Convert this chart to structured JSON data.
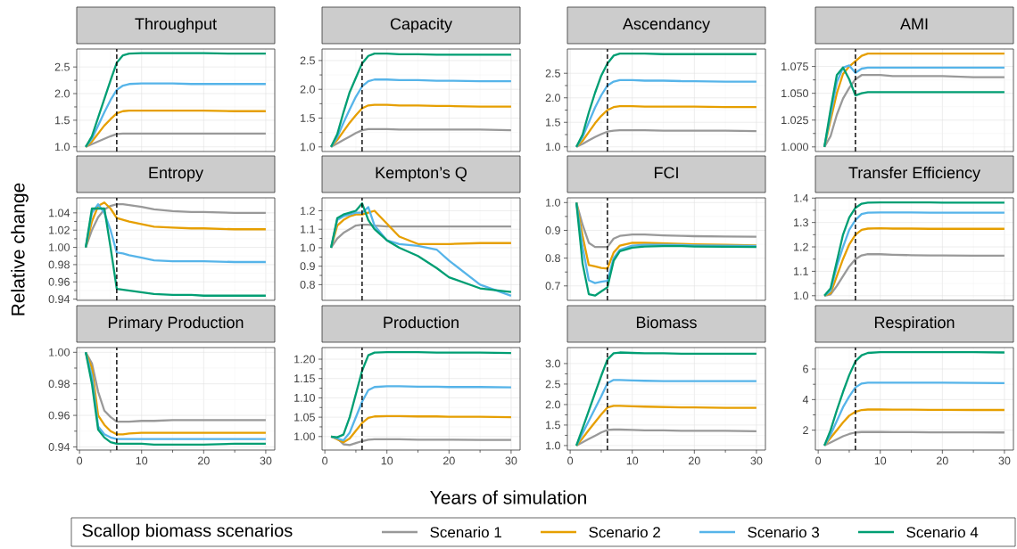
{
  "chart_data": [
    {
      "type": "line",
      "title": "Throughput",
      "legend": "bottom",
      "legend_title": "Scallop biomass scenarios",
      "grid": true,
      "tick_labels": "y",
      "x": [
        1,
        2,
        3,
        4,
        5,
        6,
        7,
        8,
        10,
        12,
        15,
        18,
        20,
        25,
        30
      ],
      "xlim": [
        -0.45,
        31.45
      ],
      "xticks": [
        0,
        10,
        20,
        30
      ],
      "ylim": [
        0.9125,
        2.8375
      ],
      "yticks": [
        {
          "value": 1,
          "label": "1.0"
        },
        {
          "value": 1.5,
          "label": "1.5"
        },
        {
          "value": 2,
          "label": "2.0"
        },
        {
          "value": 2.5,
          "label": "2.5"
        }
      ],
      "ref_lines": [
        {
          "axis": "x",
          "value": 6,
          "color": "#000000",
          "line_style": "dashed"
        }
      ],
      "series": [
        {
          "name": "Scenario 1",
          "color": "#999999",
          "values": [
            1.0,
            1.05,
            1.1,
            1.15,
            1.2,
            1.24,
            1.25,
            1.25,
            1.25,
            1.25,
            1.25,
            1.25,
            1.25,
            1.25,
            1.25
          ]
        },
        {
          "name": "Scenario 2",
          "color": "#E69F00",
          "values": [
            1.0,
            1.1,
            1.25,
            1.4,
            1.52,
            1.63,
            1.67,
            1.68,
            1.68,
            1.68,
            1.68,
            1.68,
            1.68,
            1.67,
            1.67
          ]
        },
        {
          "name": "Scenario 3",
          "color": "#56B4E9",
          "values": [
            1.0,
            1.15,
            1.4,
            1.65,
            1.88,
            2.07,
            2.15,
            2.18,
            2.19,
            2.19,
            2.19,
            2.18,
            2.18,
            2.18,
            2.18
          ]
        },
        {
          "name": "Scenario 4",
          "color": "#009E73",
          "values": [
            1.0,
            1.2,
            1.55,
            1.9,
            2.25,
            2.58,
            2.72,
            2.75,
            2.76,
            2.76,
            2.76,
            2.76,
            2.76,
            2.75,
            2.75
          ]
        }
      ]
    },
    {
      "type": "line",
      "title": "Capacity",
      "grid": true,
      "tick_labels": "y",
      "x": [
        1,
        2,
        3,
        4,
        5,
        6,
        7,
        8,
        10,
        12,
        15,
        18,
        20,
        25,
        30
      ],
      "xlim": [
        -0.45,
        31.45
      ],
      "xticks": [
        0,
        10,
        20,
        30
      ],
      "ylim": [
        0.92,
        2.7
      ],
      "yticks": [
        {
          "value": 1,
          "label": "1.0"
        },
        {
          "value": 1.5,
          "label": "1.5"
        },
        {
          "value": 2,
          "label": "2.0"
        },
        {
          "value": 2.5,
          "label": "2.5"
        }
      ],
      "ref_lines": [
        {
          "axis": "x",
          "value": 6,
          "color": "#000000",
          "line_style": "dashed"
        }
      ],
      "series": [
        {
          "color": "#999999",
          "values": [
            1,
            1.06,
            1.12,
            1.18,
            1.24,
            1.29,
            1.31,
            1.31,
            1.31,
            1.3,
            1.3,
            1.3,
            1.3,
            1.3,
            1.29
          ]
        },
        {
          "color": "#E69F00",
          "values": [
            1,
            1.12,
            1.27,
            1.42,
            1.55,
            1.67,
            1.72,
            1.73,
            1.73,
            1.72,
            1.72,
            1.71,
            1.71,
            1.7,
            1.7
          ]
        },
        {
          "color": "#56B4E9",
          "values": [
            1,
            1.17,
            1.42,
            1.65,
            1.87,
            2.05,
            2.14,
            2.17,
            2.17,
            2.16,
            2.16,
            2.15,
            2.15,
            2.14,
            2.14
          ]
        },
        {
          "color": "#009E73",
          "values": [
            1,
            1.22,
            1.6,
            1.95,
            2.2,
            2.45,
            2.58,
            2.62,
            2.62,
            2.61,
            2.61,
            2.6,
            2.6,
            2.6,
            2.6
          ]
        }
      ]
    },
    {
      "type": "line",
      "title": "Ascendancy",
      "grid": true,
      "tick_labels": "y",
      "x": [
        1,
        2,
        3,
        4,
        5,
        6,
        7,
        8,
        10,
        12,
        15,
        18,
        20,
        25,
        30
      ],
      "xlim": [
        -0.45,
        31.45
      ],
      "xticks": [
        0,
        10,
        20,
        30
      ],
      "ylim": [
        0.905,
        2.995
      ],
      "yticks": [
        {
          "value": 1,
          "label": "1.0"
        },
        {
          "value": 1.5,
          "label": "1.5"
        },
        {
          "value": 2,
          "label": "2.0"
        },
        {
          "value": 2.5,
          "label": "2.5"
        }
      ],
      "ref_lines": [
        {
          "axis": "x",
          "value": 6,
          "color": "#000000",
          "line_style": "dashed"
        }
      ],
      "series": [
        {
          "color": "#999999",
          "values": [
            1,
            1.06,
            1.13,
            1.2,
            1.26,
            1.31,
            1.33,
            1.34,
            1.34,
            1.34,
            1.33,
            1.33,
            1.33,
            1.33,
            1.32
          ]
        },
        {
          "color": "#E69F00",
          "values": [
            1,
            1.12,
            1.3,
            1.48,
            1.63,
            1.75,
            1.81,
            1.83,
            1.83,
            1.82,
            1.82,
            1.82,
            1.82,
            1.81,
            1.81
          ]
        },
        {
          "color": "#56B4E9",
          "values": [
            1,
            1.2,
            1.5,
            1.8,
            2.05,
            2.25,
            2.33,
            2.36,
            2.36,
            2.35,
            2.35,
            2.34,
            2.34,
            2.33,
            2.33
          ]
        },
        {
          "color": "#009E73",
          "values": [
            1,
            1.25,
            1.7,
            2.1,
            2.45,
            2.7,
            2.86,
            2.9,
            2.9,
            2.9,
            2.89,
            2.89,
            2.89,
            2.89,
            2.89
          ]
        }
      ]
    },
    {
      "type": "line",
      "title": "AMI",
      "grid": true,
      "tick_labels": "y",
      "x": [
        1,
        2,
        3,
        4,
        5,
        6,
        7,
        8,
        10,
        12,
        15,
        18,
        20,
        25,
        30
      ],
      "xlim": [
        -0.45,
        31.45
      ],
      "xticks": [
        0,
        10,
        20,
        30
      ],
      "ylim": [
        0.9957,
        1.0913
      ],
      "yticks": [
        {
          "value": 1,
          "label": "1.000"
        },
        {
          "value": 1.025,
          "label": "1.025"
        },
        {
          "value": 1.05,
          "label": "1.050"
        },
        {
          "value": 1.075,
          "label": "1.075"
        }
      ],
      "ref_lines": [
        {
          "axis": "x",
          "value": 6,
          "color": "#000000",
          "line_style": "dashed"
        }
      ],
      "series": [
        {
          "color": "#999999",
          "values": [
            1,
            1.01,
            1.03,
            1.045,
            1.055,
            1.063,
            1.067,
            1.067,
            1.067,
            1.066,
            1.066,
            1.066,
            1.066,
            1.065,
            1.065
          ]
        },
        {
          "color": "#E69F00",
          "values": [
            1,
            1.025,
            1.05,
            1.068,
            1.075,
            1.08,
            1.085,
            1.087,
            1.087,
            1.087,
            1.087,
            1.087,
            1.087,
            1.087,
            1.087
          ]
        },
        {
          "color": "#56B4E9",
          "values": [
            1,
            1.03,
            1.06,
            1.074,
            1.076,
            1.069,
            1.073,
            1.074,
            1.074,
            1.074,
            1.074,
            1.074,
            1.074,
            1.074,
            1.074
          ]
        },
        {
          "color": "#009E73",
          "values": [
            1,
            1.035,
            1.067,
            1.074,
            1.063,
            1.048,
            1.05,
            1.051,
            1.051,
            1.051,
            1.051,
            1.051,
            1.051,
            1.051,
            1.051
          ]
        }
      ]
    },
    {
      "type": "line",
      "title": "Entropy",
      "ylabel": "Relative change",
      "grid": true,
      "tick_labels": "y",
      "x": [
        1,
        2,
        3,
        4,
        5,
        6,
        7,
        8,
        10,
        12,
        15,
        18,
        20,
        25,
        30
      ],
      "xlim": [
        -0.45,
        31.45
      ],
      "xticks": [
        0,
        10,
        20,
        30
      ],
      "ylim": [
        0.9386,
        1.0574
      ],
      "yticks": [
        {
          "value": 0.94,
          "label": "0.94"
        },
        {
          "value": 0.96,
          "label": "0.96"
        },
        {
          "value": 0.98,
          "label": "0.98"
        },
        {
          "value": 1,
          "label": "1.00"
        },
        {
          "value": 1.02,
          "label": "1.02"
        },
        {
          "value": 1.04,
          "label": "1.04"
        }
      ],
      "ref_lines": [
        {
          "axis": "x",
          "value": 6,
          "color": "#000000",
          "line_style": "dashed"
        }
      ],
      "series": [
        {
          "color": "#999999",
          "values": [
            1,
            1.02,
            1.035,
            1.044,
            1.048,
            1.05,
            1.05,
            1.049,
            1.047,
            1.044,
            1.042,
            1.041,
            1.041,
            1.04,
            1.04
          ]
        },
        {
          "color": "#E69F00",
          "values": [
            1,
            1.03,
            1.048,
            1.052,
            1.045,
            1.034,
            1.032,
            1.03,
            1.027,
            1.024,
            1.023,
            1.022,
            1.022,
            1.021,
            1.021
          ]
        },
        {
          "color": "#56B4E9",
          "values": [
            1,
            1.04,
            1.05,
            1.04,
            1.02,
            0.994,
            0.993,
            0.991,
            0.988,
            0.985,
            0.984,
            0.984,
            0.984,
            0.983,
            0.983
          ]
        },
        {
          "color": "#009E73",
          "values": [
            1,
            1.045,
            1.045,
            1.045,
            1.0,
            0.952,
            0.951,
            0.95,
            0.948,
            0.946,
            0.945,
            0.945,
            0.944,
            0.944,
            0.944
          ]
        }
      ]
    },
    {
      "type": "line",
      "title": "Kempton’s Q",
      "grid": true,
      "tick_labels": "y",
      "x": [
        1,
        2,
        3,
        4,
        5,
        6,
        7,
        8,
        10,
        12,
        15,
        18,
        20,
        25,
        30
      ],
      "xlim": [
        -0.45,
        31.45
      ],
      "xticks": [
        0,
        10,
        20,
        30
      ],
      "ylim": [
        0.715,
        1.27
      ],
      "yticks": [
        {
          "value": 0.8,
          "label": "0.8"
        },
        {
          "value": 0.9,
          "label": "0.9"
        },
        {
          "value": 1,
          "label": "1.0"
        },
        {
          "value": 1.1,
          "label": "1.1"
        },
        {
          "value": 1.2,
          "label": "1.2"
        }
      ],
      "ref_lines": [
        {
          "axis": "x",
          "value": 6,
          "color": "#000000",
          "line_style": "dashed"
        }
      ],
      "series": [
        {
          "color": "#999999",
          "values": [
            1,
            1.05,
            1.08,
            1.1,
            1.12,
            1.125,
            1.125,
            1.12,
            1.115,
            1.115,
            1.115,
            1.115,
            1.115,
            1.115,
            1.115
          ]
        },
        {
          "color": "#E69F00",
          "values": [
            1,
            1.12,
            1.15,
            1.17,
            1.18,
            1.18,
            1.19,
            1.2,
            1.13,
            1.06,
            1.02,
            1.02,
            1.02,
            1.025,
            1.025
          ]
        },
        {
          "color": "#56B4E9",
          "values": [
            1,
            1.15,
            1.17,
            1.18,
            1.19,
            1.19,
            1.22,
            1.12,
            1.04,
            1.02,
            1.01,
            0.99,
            0.93,
            0.8,
            0.74
          ]
        },
        {
          "color": "#009E73",
          "values": [
            1,
            1.16,
            1.18,
            1.19,
            1.2,
            1.24,
            1.15,
            1.1,
            1.04,
            1.0,
            0.955,
            0.89,
            0.84,
            0.78,
            0.76
          ]
        }
      ]
    },
    {
      "type": "line",
      "title": "FCI",
      "grid": true,
      "tick_labels": "y",
      "x": [
        1,
        2,
        3,
        4,
        5,
        6,
        7,
        8,
        10,
        12,
        15,
        18,
        20,
        25,
        30
      ],
      "xlim": [
        -0.45,
        31.45
      ],
      "xticks": [
        0,
        10,
        20,
        30
      ],
      "ylim": [
        0.648,
        1.017
      ],
      "yticks": [
        {
          "value": 0.7,
          "label": "0.7"
        },
        {
          "value": 0.8,
          "label": "0.8"
        },
        {
          "value": 0.9,
          "label": "0.9"
        },
        {
          "value": 1,
          "label": "1.0"
        }
      ],
      "ref_lines": [
        {
          "axis": "x",
          "value": 6,
          "color": "#000000",
          "line_style": "dashed"
        }
      ],
      "series": [
        {
          "color": "#999999",
          "values": [
            1,
            0.92,
            0.855,
            0.84,
            0.84,
            0.84,
            0.87,
            0.88,
            0.885,
            0.885,
            0.882,
            0.88,
            0.879,
            0.878,
            0.877
          ]
        },
        {
          "color": "#E69F00",
          "values": [
            1,
            0.88,
            0.775,
            0.77,
            0.765,
            0.762,
            0.82,
            0.845,
            0.855,
            0.855,
            0.853,
            0.851,
            0.85,
            0.848,
            0.846
          ]
        },
        {
          "color": "#56B4E9",
          "values": [
            1,
            0.84,
            0.72,
            0.71,
            0.715,
            0.718,
            0.8,
            0.83,
            0.845,
            0.848,
            0.848,
            0.847,
            0.846,
            0.845,
            0.844
          ]
        },
        {
          "color": "#009E73",
          "values": [
            1,
            0.78,
            0.67,
            0.665,
            0.68,
            0.695,
            0.79,
            0.825,
            0.838,
            0.842,
            0.843,
            0.843,
            0.842,
            0.841,
            0.84
          ]
        }
      ]
    },
    {
      "type": "line",
      "title": "Transfer Efficiency",
      "grid": true,
      "tick_labels": "y",
      "x": [
        1,
        2,
        3,
        4,
        5,
        6,
        7,
        8,
        10,
        12,
        15,
        18,
        20,
        25,
        30
      ],
      "xlim": [
        -0.45,
        31.45
      ],
      "xticks": [
        0,
        10,
        20,
        30
      ],
      "ylim": [
        0.981,
        1.401
      ],
      "yticks": [
        {
          "value": 1,
          "label": "1.0"
        },
        {
          "value": 1.1,
          "label": "1.1"
        },
        {
          "value": 1.2,
          "label": "1.2"
        },
        {
          "value": 1.3,
          "label": "1.3"
        },
        {
          "value": 1.4,
          "label": "1.4"
        }
      ],
      "ref_lines": [
        {
          "axis": "x",
          "value": 6,
          "color": "#000000",
          "line_style": "dashed"
        }
      ],
      "series": [
        {
          "color": "#999999",
          "values": [
            1,
            1.005,
            1.04,
            1.08,
            1.12,
            1.15,
            1.165,
            1.17,
            1.17,
            1.168,
            1.166,
            1.165,
            1.165,
            1.164,
            1.164
          ]
        },
        {
          "color": "#E69F00",
          "values": [
            1,
            1.01,
            1.08,
            1.15,
            1.21,
            1.25,
            1.27,
            1.275,
            1.276,
            1.275,
            1.275,
            1.274,
            1.274,
            1.274,
            1.274
          ]
        },
        {
          "color": "#56B4E9",
          "values": [
            1,
            1.02,
            1.12,
            1.2,
            1.27,
            1.31,
            1.335,
            1.34,
            1.341,
            1.341,
            1.341,
            1.34,
            1.34,
            1.34,
            1.34
          ]
        },
        {
          "color": "#009E73",
          "values": [
            1,
            1.03,
            1.14,
            1.25,
            1.32,
            1.36,
            1.377,
            1.381,
            1.382,
            1.382,
            1.382,
            1.382,
            1.381,
            1.381,
            1.381
          ]
        }
      ]
    },
    {
      "type": "line",
      "title": "Primary Production",
      "grid": true,
      "x": [
        1,
        2,
        3,
        4,
        5,
        6,
        7,
        8,
        10,
        12,
        15,
        18,
        20,
        25,
        30
      ],
      "xlim": [
        -0.45,
        31.45
      ],
      "xticks": [
        0,
        10,
        20,
        30
      ],
      "ylim": [
        0.938,
        1.003
      ],
      "yticks": [
        {
          "value": 0.94,
          "label": "0.94"
        },
        {
          "value": 0.96,
          "label": "0.96"
        },
        {
          "value": 0.98,
          "label": "0.98"
        },
        {
          "value": 1,
          "label": "1.00"
        }
      ],
      "ref_lines": [
        {
          "axis": "x",
          "value": 6,
          "color": "#000000",
          "line_style": "dashed"
        }
      ],
      "series": [
        {
          "color": "#999999",
          "values": [
            1,
            0.993,
            0.975,
            0.963,
            0.959,
            0.956,
            0.956,
            0.956,
            0.9565,
            0.9565,
            0.957,
            0.957,
            0.957,
            0.957,
            0.957
          ]
        },
        {
          "color": "#E69F00",
          "values": [
            1,
            0.99,
            0.96,
            0.954,
            0.95,
            0.948,
            0.948,
            0.9485,
            0.949,
            0.949,
            0.949,
            0.949,
            0.949,
            0.949,
            0.949
          ]
        },
        {
          "color": "#56B4E9",
          "values": [
            1,
            0.985,
            0.953,
            0.948,
            0.946,
            0.945,
            0.945,
            0.945,
            0.945,
            0.945,
            0.945,
            0.945,
            0.945,
            0.945,
            0.945
          ]
        },
        {
          "color": "#009E73",
          "values": [
            1,
            0.98,
            0.951,
            0.946,
            0.943,
            0.942,
            0.942,
            0.942,
            0.942,
            0.9415,
            0.9415,
            0.9415,
            0.9415,
            0.942,
            0.942
          ]
        }
      ]
    },
    {
      "type": "line",
      "title": "Production",
      "xlabel": "Years of simulation",
      "grid": true,
      "x": [
        1,
        2,
        3,
        4,
        5,
        6,
        7,
        8,
        10,
        12,
        15,
        18,
        20,
        25,
        30
      ],
      "xlim": [
        -0.45,
        31.45
      ],
      "xticks": [
        0,
        10,
        20,
        30
      ],
      "ylim": [
        0.965,
        1.23
      ],
      "yticks": [
        {
          "value": 1,
          "label": "1.00"
        },
        {
          "value": 1.05,
          "label": "1.05"
        },
        {
          "value": 1.1,
          "label": "1.10"
        },
        {
          "value": 1.15,
          "label": "1.15"
        },
        {
          "value": 1.2,
          "label": "1.20"
        }
      ],
      "ref_lines": [
        {
          "axis": "x",
          "value": 6,
          "color": "#000000",
          "line_style": "dashed"
        }
      ],
      "series": [
        {
          "color": "#999999",
          "values": [
            1,
            0.995,
            0.98,
            0.978,
            0.983,
            0.988,
            0.992,
            0.993,
            0.993,
            0.993,
            0.992,
            0.992,
            0.992,
            0.991,
            0.991
          ]
        },
        {
          "color": "#E69F00",
          "values": [
            1,
            0.993,
            0.985,
            0.995,
            1.015,
            1.035,
            1.048,
            1.052,
            1.053,
            1.053,
            1.052,
            1.052,
            1.051,
            1.051,
            1.05
          ]
        },
        {
          "color": "#56B4E9",
          "values": [
            1,
            0.995,
            0.99,
            1.01,
            1.05,
            1.09,
            1.12,
            1.128,
            1.13,
            1.13,
            1.129,
            1.129,
            1.128,
            1.128,
            1.127
          ]
        },
        {
          "color": "#009E73",
          "values": [
            1,
            0.998,
            1.005,
            1.05,
            1.11,
            1.17,
            1.21,
            1.217,
            1.218,
            1.218,
            1.218,
            1.217,
            1.217,
            1.217,
            1.216
          ]
        }
      ]
    },
    {
      "type": "line",
      "title": "Biomass",
      "grid": true,
      "x": [
        1,
        2,
        3,
        4,
        5,
        6,
        7,
        8,
        10,
        12,
        15,
        18,
        20,
        25,
        30
      ],
      "xlim": [
        -0.45,
        31.45
      ],
      "xticks": [
        0,
        10,
        20,
        30
      ],
      "ylim": [
        0.89,
        3.39
      ],
      "yticks": [
        {
          "value": 1,
          "label": "1.0"
        },
        {
          "value": 1.5,
          "label": "1.5"
        },
        {
          "value": 2,
          "label": "2.0"
        },
        {
          "value": 2.5,
          "label": "2.5"
        },
        {
          "value": 3,
          "label": "3.0"
        }
      ],
      "ref_lines": [
        {
          "axis": "x",
          "value": 6,
          "color": "#000000",
          "line_style": "dashed"
        }
      ],
      "series": [
        {
          "color": "#999999",
          "values": [
            1,
            1.08,
            1.16,
            1.24,
            1.32,
            1.38,
            1.39,
            1.39,
            1.38,
            1.37,
            1.37,
            1.36,
            1.36,
            1.36,
            1.35
          ]
        },
        {
          "color": "#E69F00",
          "values": [
            1,
            1.18,
            1.38,
            1.57,
            1.76,
            1.93,
            1.97,
            1.97,
            1.96,
            1.95,
            1.94,
            1.93,
            1.93,
            1.92,
            1.92
          ]
        },
        {
          "color": "#56B4E9",
          "values": [
            1,
            1.3,
            1.6,
            1.9,
            2.2,
            2.52,
            2.6,
            2.6,
            2.59,
            2.58,
            2.57,
            2.57,
            2.57,
            2.57,
            2.57
          ]
        },
        {
          "color": "#009E73",
          "values": [
            1,
            1.42,
            1.85,
            2.28,
            2.7,
            3.1,
            3.25,
            3.27,
            3.26,
            3.25,
            3.25,
            3.24,
            3.24,
            3.24,
            3.24
          ]
        }
      ]
    },
    {
      "type": "line",
      "title": "Respiration",
      "grid": true,
      "x": [
        1,
        2,
        3,
        4,
        5,
        6,
        7,
        8,
        10,
        12,
        15,
        18,
        20,
        25,
        30
      ],
      "xlim": [
        -0.45,
        31.45
      ],
      "xticks": [
        0,
        10,
        20,
        30
      ],
      "ylim": [
        0.7,
        7.4
      ],
      "yticks": [
        2,
        4,
        6
      ],
      "ref_lines": [
        {
          "axis": "x",
          "value": 6,
          "color": "#000000",
          "line_style": "dashed"
        }
      ],
      "series": [
        {
          "color": "#999999",
          "values": [
            1,
            1.2,
            1.4,
            1.6,
            1.75,
            1.85,
            1.88,
            1.88,
            1.88,
            1.87,
            1.87,
            1.86,
            1.86,
            1.86,
            1.85
          ]
        },
        {
          "color": "#E69F00",
          "values": [
            1,
            1.5,
            2.0,
            2.5,
            2.95,
            3.2,
            3.32,
            3.35,
            3.35,
            3.34,
            3.34,
            3.33,
            3.33,
            3.32,
            3.32
          ]
        },
        {
          "color": "#56B4E9",
          "values": [
            1,
            1.7,
            2.6,
            3.5,
            4.2,
            4.8,
            5.05,
            5.1,
            5.1,
            5.1,
            5.1,
            5.1,
            5.1,
            5.09,
            5.08
          ]
        },
        {
          "color": "#009E73",
          "values": [
            1,
            2.0,
            3.3,
            4.5,
            5.6,
            6.5,
            6.9,
            7.05,
            7.1,
            7.1,
            7.1,
            7.1,
            7.1,
            7.1,
            7.08
          ]
        }
      ]
    }
  ]
}
